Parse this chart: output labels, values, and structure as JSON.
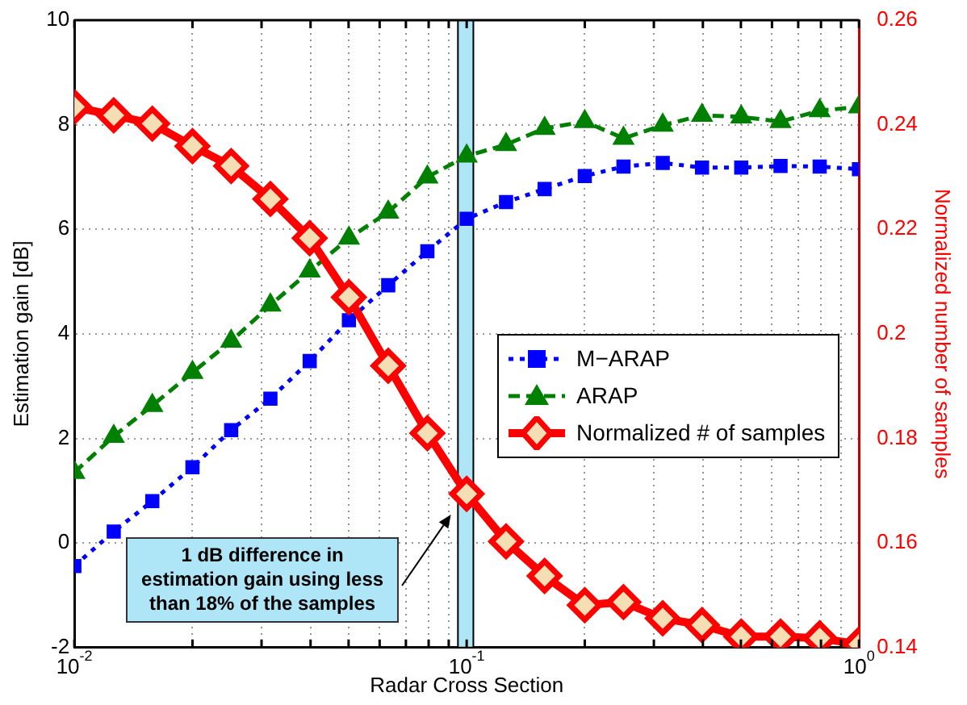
{
  "chart_data": {
    "type": "line",
    "xlabel": "Radar Cross Section",
    "ylabel": "Estimation gain [dB]",
    "y2label": "Normalized number of samples",
    "x": [
      0.01,
      0.0126,
      0.0158,
      0.02,
      0.0251,
      0.0316,
      0.0398,
      0.0501,
      0.0631,
      0.0794,
      0.1,
      0.126,
      0.158,
      0.2,
      0.251,
      0.316,
      0.398,
      0.501,
      0.631,
      0.794,
      1
    ],
    "series": [
      {
        "name": "M−ARAP",
        "color": "#0000ff",
        "marker": "square",
        "line_style": "dotted",
        "values": [
          -0.44,
          0.22,
          0.8,
          1.45,
          2.16,
          2.76,
          3.48,
          4.26,
          4.93,
          5.58,
          6.2,
          6.52,
          6.77,
          7.02,
          7.2,
          7.27,
          7.18,
          7.18,
          7.21,
          7.2,
          7.15
        ]
      },
      {
        "name": "ARAP",
        "color": "#008000",
        "marker": "triangle",
        "line_style": "dashed",
        "values": [
          1.35,
          2.04,
          2.63,
          3.26,
          3.86,
          4.55,
          5.2,
          5.83,
          6.33,
          7.0,
          7.4,
          7.62,
          7.93,
          8.06,
          7.74,
          7.99,
          8.18,
          8.15,
          8.06,
          8.27,
          8.34
        ]
      },
      {
        "name": "Normalized # of samples",
        "color": "#ff0000",
        "marker": "diamond",
        "line_style": "solid",
        "axis": "y2",
        "values": [
          0.2434,
          0.2418,
          0.2402,
          0.2359,
          0.2321,
          0.2258,
          0.2183,
          0.207,
          0.1939,
          0.181,
          0.1694,
          0.1603,
          0.1537,
          0.1481,
          0.1487,
          0.1456,
          0.1443,
          0.1421,
          0.1421,
          0.1418,
          0.1406
        ]
      }
    ],
    "log": "x",
    "xlim": [
      0.01,
      1
    ],
    "xticks": [
      {
        "value": 0.01,
        "label": "10$^{-2}$"
      },
      {
        "value": 0.02,
        "label": null
      },
      {
        "value": 0.03,
        "label": null
      },
      {
        "value": 0.04,
        "label": null
      },
      {
        "value": 0.05,
        "label": null
      },
      {
        "value": 0.06,
        "label": null
      },
      {
        "value": 0.07,
        "label": null
      },
      {
        "value": 0.08,
        "label": null
      },
      {
        "value": 0.09,
        "label": null
      },
      {
        "value": 0.1,
        "label": "10$^{-1}$"
      },
      {
        "value": 0.2,
        "label": null
      },
      {
        "value": 0.3,
        "label": null
      },
      {
        "value": 0.4,
        "label": null
      },
      {
        "value": 0.5,
        "label": null
      },
      {
        "value": 0.6,
        "label": null
      },
      {
        "value": 0.7,
        "label": null
      },
      {
        "value": 0.8,
        "label": null
      },
      {
        "value": 0.9,
        "label": null
      },
      {
        "value": 1,
        "label": "10$^{0}$"
      }
    ],
    "ylim": [
      -2,
      10
    ],
    "yticks": [
      -2,
      0,
      2,
      4,
      6,
      8,
      10
    ],
    "y2lim": [
      0.14,
      0.26
    ],
    "y2ticks": [
      0.14,
      0.16,
      0.18,
      0.2,
      0.22,
      0.24,
      0.26
    ],
    "bands": [
      {
        "axis": "x",
        "from": 0.095,
        "to": 0.104,
        "color": "#aee6f7"
      }
    ],
    "annotations": [
      "1 dB difference in estimation gain using less than 18% of the samples"
    ],
    "grid": true,
    "legend": "right"
  }
}
